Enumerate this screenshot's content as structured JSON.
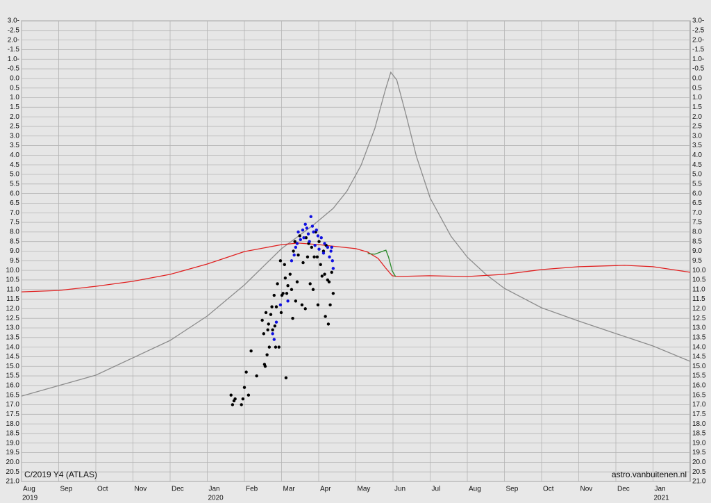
{
  "chart_data": {
    "type": "line",
    "title": "C/2019 Y4 (ATLAS)",
    "credit": "astro.vanbuitenen.nl",
    "xlim": [
      0,
      18
    ],
    "ylim": [
      -3,
      21
    ],
    "y_inverted": true,
    "grid": true,
    "xticks": [
      {
        "value": 0,
        "label": "Aug"
      },
      {
        "value": 1,
        "label": "Sep"
      },
      {
        "value": 2,
        "label": "Oct"
      },
      {
        "value": 3,
        "label": "Nov"
      },
      {
        "value": 4,
        "label": "Dec"
      },
      {
        "value": 5,
        "label": "Jan"
      },
      {
        "value": 6,
        "label": "Feb"
      },
      {
        "value": 7,
        "label": "Mar"
      },
      {
        "value": 8,
        "label": "Apr"
      },
      {
        "value": 9,
        "label": "May"
      },
      {
        "value": 10,
        "label": "Jun"
      },
      {
        "value": 11,
        "label": "Jul"
      },
      {
        "value": 12,
        "label": "Aug"
      },
      {
        "value": 13,
        "label": "Sep"
      },
      {
        "value": 14,
        "label": "Oct"
      },
      {
        "value": 15,
        "label": "Nov"
      },
      {
        "value": 16,
        "label": "Dec"
      },
      {
        "value": 17,
        "label": "Jan"
      }
    ],
    "year_labels": [
      {
        "value": 0,
        "label": "2019"
      },
      {
        "value": 5,
        "label": "2020"
      },
      {
        "value": 17,
        "label": "2021"
      }
    ],
    "yticks": [
      {
        "value": -3,
        "label": "3.0-"
      },
      -2.5,
      {
        "value": -2,
        "label": "2.0-"
      },
      -1.5,
      {
        "value": -1,
        "label": "1.0-"
      },
      -0.5,
      {
        "value": 0,
        "label": "0.0"
      },
      0.5,
      {
        "value": 1,
        "label": "1.0"
      },
      1.5,
      {
        "value": 2,
        "label": "2.0"
      },
      2.5,
      {
        "value": 3,
        "label": "3.0"
      },
      3.5,
      {
        "value": 4,
        "label": "4.0"
      },
      4.5,
      {
        "value": 5,
        "label": "5.0"
      },
      5.5,
      {
        "value": 6,
        "label": "6.0"
      },
      6.5,
      {
        "value": 7,
        "label": "7.0"
      },
      7.5,
      {
        "value": 8,
        "label": "8.0"
      },
      8.5,
      {
        "value": 9,
        "label": "9.0"
      },
      9.5,
      {
        "value": 10,
        "label": "10.0"
      },
      10.5,
      {
        "value": 11,
        "label": "11.0"
      },
      11.5,
      {
        "value": 12,
        "label": "12.0"
      },
      12.5,
      {
        "value": 13,
        "label": "13.0"
      },
      13.5,
      {
        "value": 14,
        "label": "14.0"
      },
      14.5,
      {
        "value": 15,
        "label": "15.0"
      },
      15.5,
      {
        "value": 16,
        "label": "16.0"
      },
      16.5,
      {
        "value": 17,
        "label": "17.0"
      },
      17.5,
      {
        "value": 18,
        "label": "18.0"
      },
      18.5,
      {
        "value": 19,
        "label": "19.0"
      },
      19.5,
      {
        "value": 20,
        "label": "20.0"
      },
      20.5,
      {
        "value": 21,
        "label": "21.0"
      }
    ],
    "series": [
      {
        "type": "line",
        "color": "#8c8c8c",
        "x": [
          0,
          2,
          4,
          5,
          6,
          7,
          7.83,
          8.39,
          8.76,
          9.14,
          9.51,
          9.79,
          9.94,
          10.1,
          10.35,
          10.63,
          11,
          11.56,
          12,
          12.5,
          13,
          14,
          15,
          15.99,
          17,
          18
        ],
        "values": [
          16.55,
          15.46,
          13.65,
          12.38,
          10.76,
          8.87,
          7.68,
          6.77,
          5.87,
          4.53,
          2.61,
          0.62,
          -0.32,
          0.08,
          1.89,
          4.06,
          6.23,
          8.22,
          9.31,
          10.21,
          10.94,
          11.95,
          12.64,
          13.29,
          13.94,
          14.74
        ]
      },
      {
        "type": "line",
        "color": "#e02020",
        "x": [
          0,
          1,
          2,
          3,
          4,
          5,
          6,
          7,
          7.45,
          8,
          9,
          9.32,
          9.6,
          9.79,
          9.98,
          10.1,
          10.98,
          12,
          13,
          14,
          15,
          16.23,
          17,
          18
        ],
        "values": [
          11.12,
          11.05,
          10.83,
          10.57,
          10.21,
          9.67,
          9.02,
          8.66,
          8.58,
          8.66,
          8.87,
          9.05,
          9.38,
          9.85,
          10.28,
          10.32,
          10.28,
          10.32,
          10.21,
          9.96,
          9.81,
          9.74,
          9.81,
          10.1
        ]
      },
      {
        "type": "line",
        "color": "#2a8a2a",
        "x": [
          9.32,
          9.51,
          9.7,
          9.81,
          9.88,
          9.98,
          10.07
        ],
        "values": [
          9.13,
          9.16,
          9.02,
          8.95,
          9.31,
          10.03,
          10.32
        ]
      },
      {
        "type": "scatter",
        "color": "#000000",
        "x": [
          5.64,
          5.68,
          5.72,
          5.75,
          5.92,
          5.96,
          6.0,
          6.05,
          6.11,
          6.18,
          6.33,
          6.48,
          6.52,
          6.54,
          6.56,
          6.58,
          6.61,
          6.63,
          6.65,
          6.67,
          6.71,
          6.74,
          6.76,
          6.8,
          6.82,
          6.84,
          6.86,
          6.89,
          6.93,
          6.97,
          6.99,
          7.01,
          7.04,
          7.08,
          7.1,
          7.12,
          7.14,
          7.17,
          7.23,
          7.27,
          7.3,
          7.32,
          7.36,
          7.38,
          7.42,
          7.45,
          7.49,
          7.55,
          7.58,
          7.64,
          7.66,
          7.7,
          7.73,
          7.77,
          7.81,
          7.85,
          7.88,
          7.92,
          7.96,
          7.98,
          8.01,
          8.05,
          8.09,
          8.13,
          8.16,
          8.18,
          8.2,
          8.24,
          8.26,
          8.28,
          8.31,
          8.35,
          8.39
        ],
        "values": [
          16.5,
          17.0,
          16.8,
          16.7,
          17.0,
          16.7,
          16.1,
          15.3,
          16.5,
          14.2,
          15.5,
          12.6,
          13.3,
          14.9,
          15.0,
          12.2,
          14.4,
          13.1,
          12.8,
          14.0,
          12.3,
          11.9,
          13.1,
          11.3,
          12.9,
          14.0,
          11.9,
          10.7,
          14.0,
          9.5,
          12.2,
          11.3,
          11.2,
          9.7,
          10.4,
          15.6,
          11.2,
          10.8,
          10.2,
          11.0,
          12.5,
          9.0,
          8.5,
          11.6,
          10.6,
          9.2,
          8.2,
          11.8,
          9.6,
          12.0,
          8.3,
          9.3,
          8.6,
          10.7,
          8.8,
          11.0,
          9.3,
          8.0,
          9.3,
          11.8,
          8.5,
          9.7,
          10.3,
          9.0,
          10.2,
          12.4,
          8.7,
          10.5,
          12.8,
          10.6,
          11.8,
          10.1,
          11.2
        ]
      },
      {
        "type": "scatter",
        "color": "#1010e0",
        "x": [
          6.76,
          6.8,
          6.86,
          6.97,
          7.17,
          7.27,
          7.34,
          7.38,
          7.42,
          7.45,
          7.51,
          7.57,
          7.6,
          7.64,
          7.68,
          7.72,
          7.75,
          7.79,
          7.83,
          7.86,
          7.9,
          7.94,
          7.98,
          8.01,
          8.07,
          8.13,
          8.16,
          8.24,
          8.29,
          8.33,
          8.35,
          8.39,
          8.37
        ],
        "values": [
          13.3,
          13.6,
          12.7,
          11.8,
          11.6,
          9.5,
          9.2,
          8.8,
          8.6,
          8.0,
          8.4,
          7.9,
          8.3,
          7.6,
          7.8,
          8.1,
          8.5,
          7.2,
          7.7,
          8.0,
          8.7,
          7.9,
          8.2,
          8.9,
          8.3,
          9.1,
          8.6,
          8.8,
          9.3,
          9.0,
          8.8,
          9.9,
          9.5
        ]
      }
    ]
  }
}
